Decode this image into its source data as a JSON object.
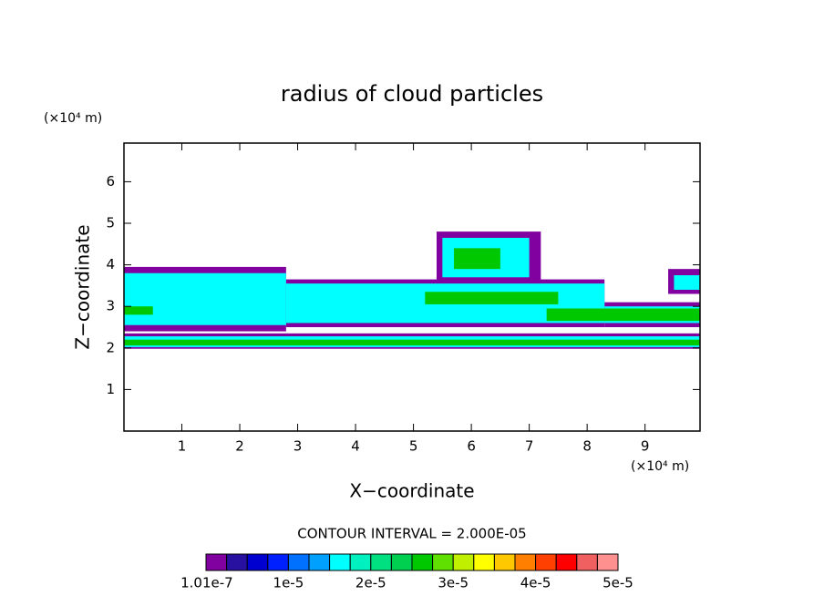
{
  "chart_data": {
    "type": "contour",
    "title": "radius of cloud particles",
    "x_label": "X−coordinate",
    "y_label": "Z−coordinate",
    "x_unit": "(×10⁴ m)",
    "y_unit": "(×10⁴ m)",
    "contour_interval": "CONTOUR INTERVAL = 2.000E-05",
    "xlim": [
      0,
      9.95
    ],
    "ylim": [
      0,
      6.93
    ],
    "xticks": [
      1,
      2,
      3,
      4,
      5,
      6,
      7,
      8,
      9
    ],
    "yticks": [
      1,
      2,
      3,
      4,
      5,
      6
    ],
    "colorbar": {
      "lim": [
        0,
        5e-05
      ],
      "colors": [
        "#8000a0",
        "#2810a0",
        "#0000d0",
        "#0020ff",
        "#0070ff",
        "#00a0ff",
        "#00ffff",
        "#00f0c0",
        "#00e080",
        "#00d050",
        "#00c800",
        "#60e000",
        "#c0f000",
        "#ffff00",
        "#ffc800",
        "#ff8000",
        "#ff4000",
        "#ff0000",
        "#f06060",
        "#ff9090"
      ],
      "ticks": [
        {
          "value": 1.01e-07,
          "label": "1.01e-7"
        },
        {
          "value": 1e-05,
          "label": "1e-5"
        },
        {
          "value": 2e-05,
          "label": "2e-5"
        },
        {
          "value": 3e-05,
          "label": "3e-5"
        },
        {
          "value": 4e-05,
          "label": "4e-5"
        },
        {
          "value": 5e-05,
          "label": "5e-5"
        }
      ]
    },
    "regions": [
      {
        "x": [
          0,
          9.95
        ],
        "z": [
          1.98,
          2.35
        ],
        "value": 1e-06
      },
      {
        "x": [
          0,
          9.95
        ],
        "z": [
          2.02,
          2.28
        ],
        "value": 1.5e-05
      },
      {
        "x": [
          0,
          9.95
        ],
        "z": [
          2.06,
          2.2
        ],
        "value": 2.7e-05
      },
      {
        "x": [
          0,
          2.8
        ],
        "z": [
          2.4,
          3.95
        ],
        "value": 1e-06
      },
      {
        "x": [
          2.8,
          8.3
        ],
        "z": [
          2.5,
          3.65
        ],
        "value": 1e-06
      },
      {
        "x": [
          8.3,
          9.95
        ],
        "z": [
          2.5,
          3.1
        ],
        "value": 1e-06
      },
      {
        "x": [
          9.4,
          9.95
        ],
        "z": [
          3.3,
          3.9
        ],
        "value": 1e-06
      },
      {
        "x": [
          5.4,
          7.2
        ],
        "z": [
          3.6,
          4.8
        ],
        "value": 1e-06
      },
      {
        "x": [
          0,
          2.8
        ],
        "z": [
          2.55,
          3.8
        ],
        "value": 1.5e-05
      },
      {
        "x": [
          2.8,
          8.3
        ],
        "z": [
          2.6,
          3.55
        ],
        "value": 1.5e-05
      },
      {
        "x": [
          8.3,
          9.95
        ],
        "z": [
          2.6,
          3.0
        ],
        "value": 1.5e-05
      },
      {
        "x": [
          9.5,
          9.95
        ],
        "z": [
          3.4,
          3.75
        ],
        "value": 1.5e-05
      },
      {
        "x": [
          5.5,
          7.0
        ],
        "z": [
          3.7,
          4.65
        ],
        "value": 1.5e-05
      },
      {
        "x": [
          5.7,
          6.5
        ],
        "z": [
          3.9,
          4.4
        ],
        "value": 2.5e-05
      },
      {
        "x": [
          5.2,
          7.5
        ],
        "z": [
          3.05,
          3.35
        ],
        "value": 2.5e-05
      },
      {
        "x": [
          0,
          0.5
        ],
        "z": [
          2.8,
          3.0
        ],
        "value": 2.5e-05
      },
      {
        "x": [
          7.3,
          9.95
        ],
        "z": [
          2.65,
          2.95
        ],
        "value": 2.5e-05
      }
    ]
  }
}
